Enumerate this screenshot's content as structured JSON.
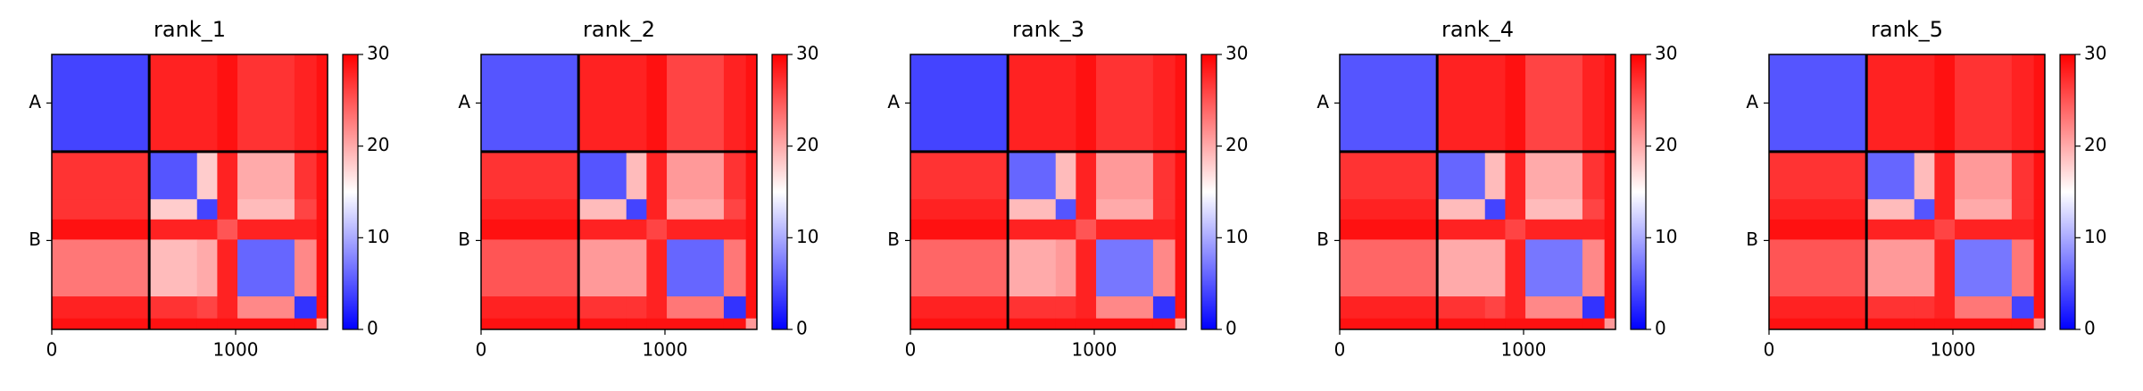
{
  "chart_data": {
    "type": "heatmap",
    "colormap": "bwr",
    "edges": [
      0,
      530,
      790,
      900,
      1010,
      1320,
      1440,
      1500
    ],
    "xlim": [
      0,
      1500
    ],
    "ylim": [
      1500,
      0
    ],
    "xticks": [
      0,
      1000
    ],
    "yticks": [
      {
        "value": 265,
        "label": "A"
      },
      {
        "value": 1015,
        "label": "B"
      }
    ],
    "boundaries": [
      530
    ],
    "clim": [
      0,
      30
    ],
    "cticks": [
      0,
      10,
      20,
      30
    ],
    "series": [
      {
        "name": "rank_1",
        "values": [
          [
            4,
            28,
            28,
            29,
            27,
            28,
            29
          ],
          [
            27,
            5,
            18,
            28,
            20,
            27,
            29
          ],
          [
            27,
            18,
            4,
            28,
            19,
            26,
            29
          ],
          [
            29,
            28,
            28,
            25,
            28,
            28,
            29
          ],
          [
            23,
            19,
            20,
            28,
            6,
            22,
            29
          ],
          [
            28,
            27,
            26,
            28,
            22,
            3,
            29
          ],
          [
            29,
            29,
            29,
            29,
            29,
            29,
            20
          ]
        ]
      },
      {
        "name": "rank_2",
        "values": [
          [
            5,
            28,
            28,
            29,
            26,
            28,
            29
          ],
          [
            27,
            5,
            19,
            28,
            21,
            27,
            29
          ],
          [
            28,
            19,
            4,
            28,
            20,
            26,
            29
          ],
          [
            29,
            28,
            28,
            26,
            28,
            28,
            29
          ],
          [
            25,
            21,
            21,
            28,
            6,
            23,
            29
          ],
          [
            28,
            27,
            27,
            28,
            23,
            3,
            29
          ],
          [
            29,
            29,
            29,
            29,
            29,
            29,
            21
          ]
        ]
      },
      {
        "name": "rank_3",
        "values": [
          [
            4,
            28,
            28,
            29,
            27,
            28,
            29
          ],
          [
            27,
            6,
            19,
            28,
            21,
            27,
            29
          ],
          [
            28,
            19,
            5,
            28,
            20,
            27,
            29
          ],
          [
            29,
            28,
            28,
            25,
            28,
            28,
            29
          ],
          [
            24,
            20,
            21,
            28,
            7,
            22,
            29
          ],
          [
            28,
            27,
            27,
            28,
            22,
            3,
            29
          ],
          [
            29,
            29,
            29,
            29,
            29,
            29,
            20
          ]
        ]
      },
      {
        "name": "rank_4",
        "values": [
          [
            5,
            28,
            28,
            29,
            26,
            28,
            29
          ],
          [
            27,
            6,
            19,
            28,
            20,
            27,
            29
          ],
          [
            28,
            19,
            4,
            28,
            19,
            26,
            29
          ],
          [
            29,
            28,
            28,
            26,
            28,
            28,
            29
          ],
          [
            24,
            20,
            20,
            28,
            7,
            22,
            29
          ],
          [
            28,
            27,
            26,
            28,
            22,
            3,
            29
          ],
          [
            29,
            29,
            29,
            29,
            29,
            29,
            21
          ]
        ]
      },
      {
        "name": "rank_5",
        "values": [
          [
            5,
            28,
            28,
            29,
            27,
            28,
            29
          ],
          [
            27,
            6,
            19,
            28,
            21,
            27,
            29
          ],
          [
            28,
            19,
            5,
            28,
            20,
            27,
            29
          ],
          [
            29,
            28,
            28,
            26,
            28,
            28,
            29
          ],
          [
            25,
            21,
            21,
            28,
            7,
            23,
            29
          ],
          [
            28,
            27,
            27,
            28,
            23,
            4,
            29
          ],
          [
            29,
            29,
            29,
            29,
            29,
            29,
            21
          ]
        ]
      }
    ]
  }
}
